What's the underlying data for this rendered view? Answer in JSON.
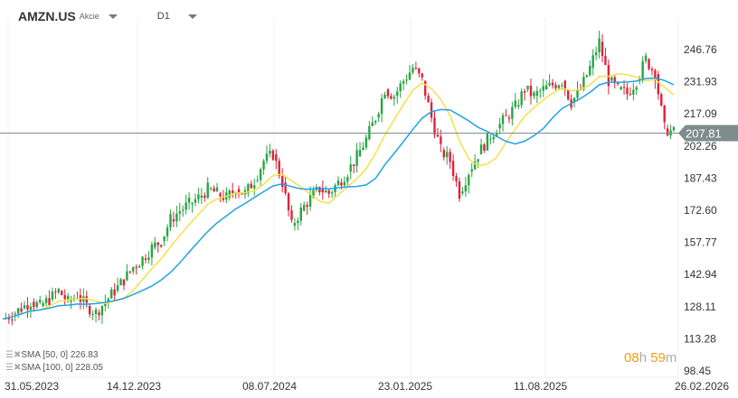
{
  "header": {
    "symbol": "AMZN.US",
    "type": "Akcie",
    "timeframe": "D1"
  },
  "indicators": [
    {
      "label": "SMA [50, 0] 226.83",
      "color": "#f5e04a"
    },
    {
      "label": "SMA [100, 0] 228.05",
      "color": "#1fa3e6"
    }
  ],
  "timer": {
    "h": "08",
    "h_unit": "h",
    "m": "59",
    "m_unit": "m"
  },
  "chart_data": {
    "type": "candlestick",
    "x_ticks": [
      "31.05.2023",
      "14.12.2023",
      "08.07.2024",
      "23.01.2025",
      "11.08.2025",
      "26.02.2026"
    ],
    "y_ticks": [
      "246.76",
      "231.93",
      "217.09",
      "202.26",
      "187.43",
      "172.60",
      "157.77",
      "142.94",
      "128.11",
      "113.28",
      "98.45"
    ],
    "ylim": [
      98.45,
      246.76
    ],
    "current_price": "207.81",
    "closes": [
      122,
      124,
      127,
      130,
      128,
      131,
      135,
      130,
      133,
      128,
      125,
      130,
      135,
      140,
      146,
      150,
      155,
      158,
      168,
      172,
      175,
      178,
      182,
      180,
      178,
      182,
      180,
      186,
      195,
      198,
      185,
      165,
      172,
      178,
      182,
      180,
      185,
      190,
      197,
      205,
      215,
      228,
      225,
      232,
      238,
      232,
      215,
      200,
      195,
      180,
      190,
      198,
      205,
      210,
      215,
      220,
      228,
      225,
      228,
      230,
      232,
      222,
      228,
      238,
      250,
      232,
      228,
      226,
      232,
      242,
      235,
      210,
      208
    ],
    "colors": {
      "up": "#26a541",
      "down": "#e0213a",
      "sma50": "#f5e04a",
      "sma100": "#1fa3e6",
      "price_label": "#7f8c8d"
    }
  }
}
